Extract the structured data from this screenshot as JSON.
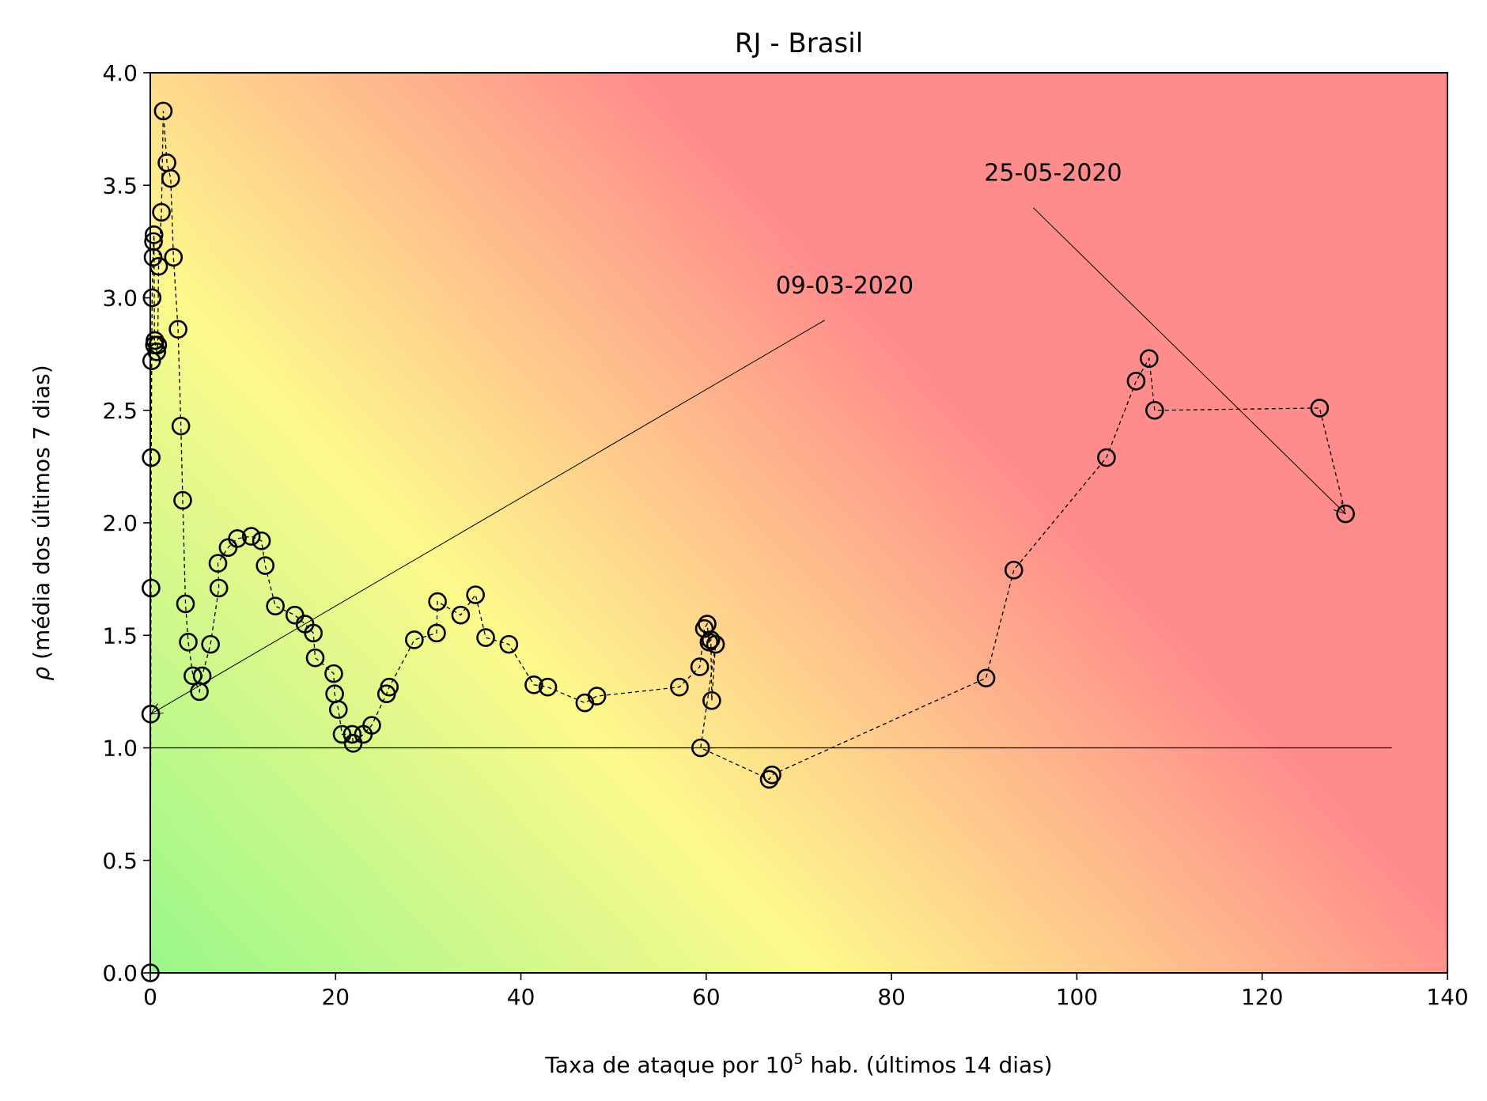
{
  "chart_data": {
    "type": "scatter",
    "title": "RJ - Brasil",
    "xlabel_prefix": "Taxa de ataque por 10",
    "xlabel_sup": "5",
    "xlabel_suffix": " hab. (últimos 14 dias)",
    "ylabel_symbol": "ρ",
    "ylabel_text": " (média dos últimos 7 dias)",
    "xlim": [
      0,
      140
    ],
    "ylim": [
      0,
      4.0
    ],
    "xticks": [
      "0",
      "20",
      "40",
      "60",
      "80",
      "100",
      "120",
      "140"
    ],
    "yticks": [
      "0.0",
      "0.5",
      "1.0",
      "1.5",
      "2.0",
      "2.5",
      "3.0",
      "3.5",
      "4.0"
    ],
    "xtick_values": [
      0,
      20,
      40,
      60,
      80,
      100,
      120,
      140
    ],
    "ytick_values": [
      0,
      0.5,
      1.0,
      1.5,
      2.0,
      2.5,
      3.0,
      3.5,
      4.0
    ],
    "reference_line": {
      "y": 1.0,
      "x_range": [
        0,
        134
      ]
    },
    "background_gradient": [
      "#99f78a",
      "#fdf98c",
      "#ff8c8c"
    ],
    "marker": "open-circle",
    "line_style": "dashed",
    "series": [
      {
        "x": [
          0.0,
          0.05,
          0.08,
          0.1,
          0.15,
          0.2,
          0.3,
          0.35,
          0.4,
          0.45,
          0.5,
          0.7,
          0.8,
          0.9,
          1.2,
          1.4,
          1.8,
          2.2,
          2.5,
          3.0,
          3.3,
          3.5,
          3.8,
          4.1,
          4.6,
          5.3,
          5.6,
          6.5,
          7.4,
          7.3,
          8.4,
          9.4,
          10.9,
          12.0,
          12.4,
          13.5,
          15.6,
          16.7,
          17.6,
          17.8,
          19.8,
          19.9,
          20.3,
          20.7,
          21.8,
          21.9,
          23.0,
          23.9,
          25.5,
          25.8,
          28.5,
          30.9,
          31.0,
          33.5,
          35.1,
          36.2,
          38.7,
          41.4,
          42.9,
          46.9,
          48.2,
          57.1,
          59.3,
          59.8,
          60.1,
          60.3,
          60.5,
          60.6,
          61.0,
          59.4,
          66.8,
          67.1,
          90.2,
          93.2,
          103.2,
          106.4,
          107.8,
          108.4,
          126.2,
          129.0
        ],
        "y": [
          0.0,
          1.15,
          1.71,
          2.29,
          2.72,
          3.0,
          3.18,
          3.25,
          3.28,
          2.79,
          2.81,
          2.76,
          2.79,
          3.14,
          3.38,
          3.83,
          3.6,
          3.53,
          3.18,
          2.86,
          2.43,
          2.1,
          1.64,
          1.47,
          1.32,
          1.25,
          1.32,
          1.46,
          1.71,
          1.82,
          1.89,
          1.93,
          1.94,
          1.92,
          1.81,
          1.63,
          1.59,
          1.55,
          1.51,
          1.4,
          1.33,
          1.24,
          1.17,
          1.06,
          1.06,
          1.02,
          1.06,
          1.1,
          1.24,
          1.27,
          1.48,
          1.51,
          1.65,
          1.59,
          1.68,
          1.49,
          1.46,
          1.28,
          1.27,
          1.2,
          1.23,
          1.27,
          1.36,
          1.53,
          1.55,
          1.47,
          1.48,
          1.21,
          1.46,
          1.0,
          0.86,
          0.88,
          1.31,
          1.79,
          2.29,
          2.63,
          2.73,
          2.5,
          2.51,
          2.04
        ]
      }
    ],
    "annotations": [
      {
        "text": "09-03-2020",
        "text_x": 67.5,
        "text_y": 3.02,
        "point_x": 0.05,
        "point_y": 1.15
      },
      {
        "text": "25-05-2020",
        "text_x": 90,
        "text_y": 3.52,
        "point_x": 129.0,
        "point_y": 2.04
      }
    ]
  }
}
